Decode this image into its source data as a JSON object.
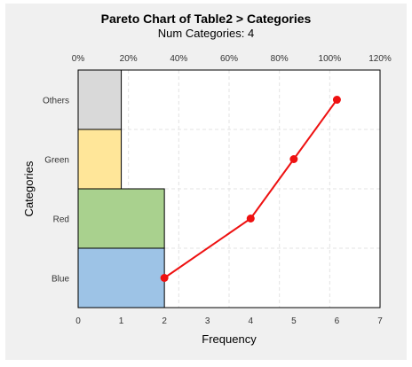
{
  "chart_data": {
    "type": "bar",
    "orientation": "horizontal",
    "title": "Pareto Chart of Table2 > Categories",
    "subtitle": "Num Categories: 4",
    "xlabel": "Frequency",
    "ylabel": "Categories",
    "categories": [
      "Blue",
      "Red",
      "Green",
      "Others"
    ],
    "series": [
      {
        "type": "bar",
        "axis": "frequency",
        "values": [
          2,
          2,
          1,
          1
        ],
        "colors": [
          "#9dc3e6",
          "#a9d18e",
          "#ffe699",
          "#d9d9d9"
        ]
      },
      {
        "type": "line",
        "axis": "frequency",
        "values": [
          2,
          4,
          5,
          6
        ],
        "color": "#ee1111"
      }
    ],
    "xlim": [
      0,
      7
    ],
    "xticks": [
      "0",
      "1",
      "2",
      "3",
      "4",
      "5",
      "6",
      "7"
    ],
    "secondary_xlim": [
      0,
      120
    ],
    "secondary_xticks": [
      "0%",
      "20%",
      "40%",
      "60%",
      "80%",
      "100%",
      "120%"
    ],
    "grid": true,
    "legend": "none"
  }
}
